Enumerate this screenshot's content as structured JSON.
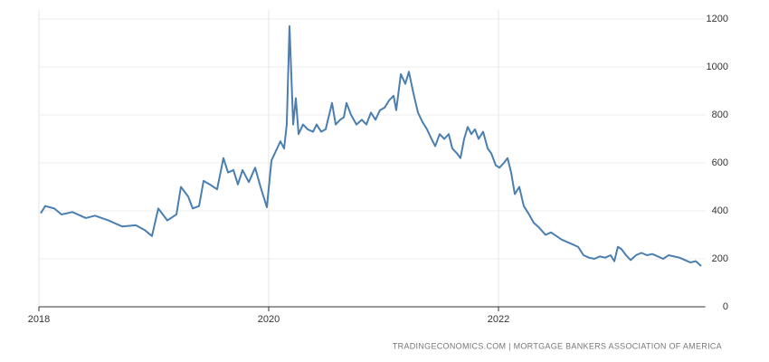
{
  "chart_data": {
    "type": "line",
    "source": "TRADINGECONOMICS.COM  |  MORTGAGE BANKERS ASSOCIATION OF AMERICA",
    "x": [
      2018.016,
      2018.055,
      2018.134,
      2018.197,
      2018.291,
      2018.409,
      2018.488,
      2018.606,
      2018.724,
      2018.843,
      2018.921,
      2018.984,
      2019.039,
      2019.118,
      2019.197,
      2019.236,
      2019.299,
      2019.339,
      2019.394,
      2019.433,
      2019.488,
      2019.551,
      2019.606,
      2019.646,
      2019.693,
      2019.732,
      2019.772,
      2019.827,
      2019.882,
      2019.929,
      2019.984,
      2020.024,
      2020.063,
      2020.102,
      2020.134,
      2020.157,
      2020.181,
      2020.213,
      2020.236,
      2020.26,
      2020.299,
      2020.339,
      2020.386,
      2020.417,
      2020.457,
      2020.496,
      2020.551,
      2020.583,
      2020.622,
      2020.654,
      2020.677,
      2020.717,
      2020.764,
      2020.811,
      2020.85,
      2020.89,
      2020.929,
      2020.969,
      2021.008,
      2021.047,
      2021.087,
      2021.11,
      2021.15,
      2021.189,
      2021.22,
      2021.26,
      2021.299,
      2021.339,
      2021.378,
      2021.417,
      2021.449,
      2021.488,
      2021.528,
      2021.567,
      2021.598,
      2021.638,
      2021.669,
      2021.701,
      2021.732,
      2021.764,
      2021.795,
      2021.827,
      2021.866,
      2021.906,
      2021.937,
      2021.976,
      2022.008,
      2022.047,
      2022.079,
      2022.11,
      2022.142,
      2022.181,
      2022.22,
      2022.26,
      2022.307,
      2022.354,
      2022.409,
      2022.457,
      2022.504,
      2022.551,
      2022.598,
      2022.646,
      2022.693,
      2022.74,
      2022.787,
      2022.835,
      2022.882,
      2022.929,
      2022.976,
      2023.008,
      2023.039,
      2023.071,
      2023.11,
      2023.15,
      2023.197,
      2023.244,
      2023.291,
      2023.339,
      2023.386,
      2023.433,
      2023.48,
      2023.528,
      2023.575,
      2023.622,
      2023.669,
      2023.717,
      2023.764
    ],
    "series": [
      {
        "color": "#4a7fb0",
        "values": [
          390,
          420,
          410,
          385,
          395,
          370,
          380,
          360,
          335,
          340,
          320,
          295,
          410,
          360,
          385,
          500,
          460,
          410,
          420,
          525,
          510,
          490,
          620,
          560,
          570,
          510,
          570,
          520,
          580,
          500,
          415,
          610,
          650,
          690,
          660,
          760,
          1170,
          760,
          870,
          720,
          760,
          740,
          730,
          760,
          730,
          740,
          850,
          760,
          780,
          790,
          850,
          800,
          760,
          780,
          760,
          810,
          780,
          820,
          830,
          860,
          880,
          820,
          970,
          930,
          980,
          890,
          810,
          770,
          740,
          700,
          670,
          720,
          700,
          720,
          660,
          640,
          620,
          700,
          750,
          720,
          740,
          700,
          730,
          660,
          640,
          590,
          580,
          600,
          620,
          560,
          470,
          500,
          420,
          390,
          350,
          330,
          300,
          310,
          295,
          280,
          270,
          260,
          250,
          215,
          205,
          200,
          210,
          205,
          215,
          190,
          250,
          240,
          215,
          195,
          215,
          225,
          215,
          220,
          210,
          200,
          215,
          210,
          205,
          195,
          185,
          190,
          170
        ]
      }
    ],
    "xlim": [
      2018,
      2023.8
    ],
    "xticks": [
      2018,
      2020,
      2022
    ],
    "ylim": [
      0,
      1200
    ],
    "yticks": [
      0,
      200,
      400,
      600,
      800,
      1000,
      1200
    ],
    "grid": true
  }
}
